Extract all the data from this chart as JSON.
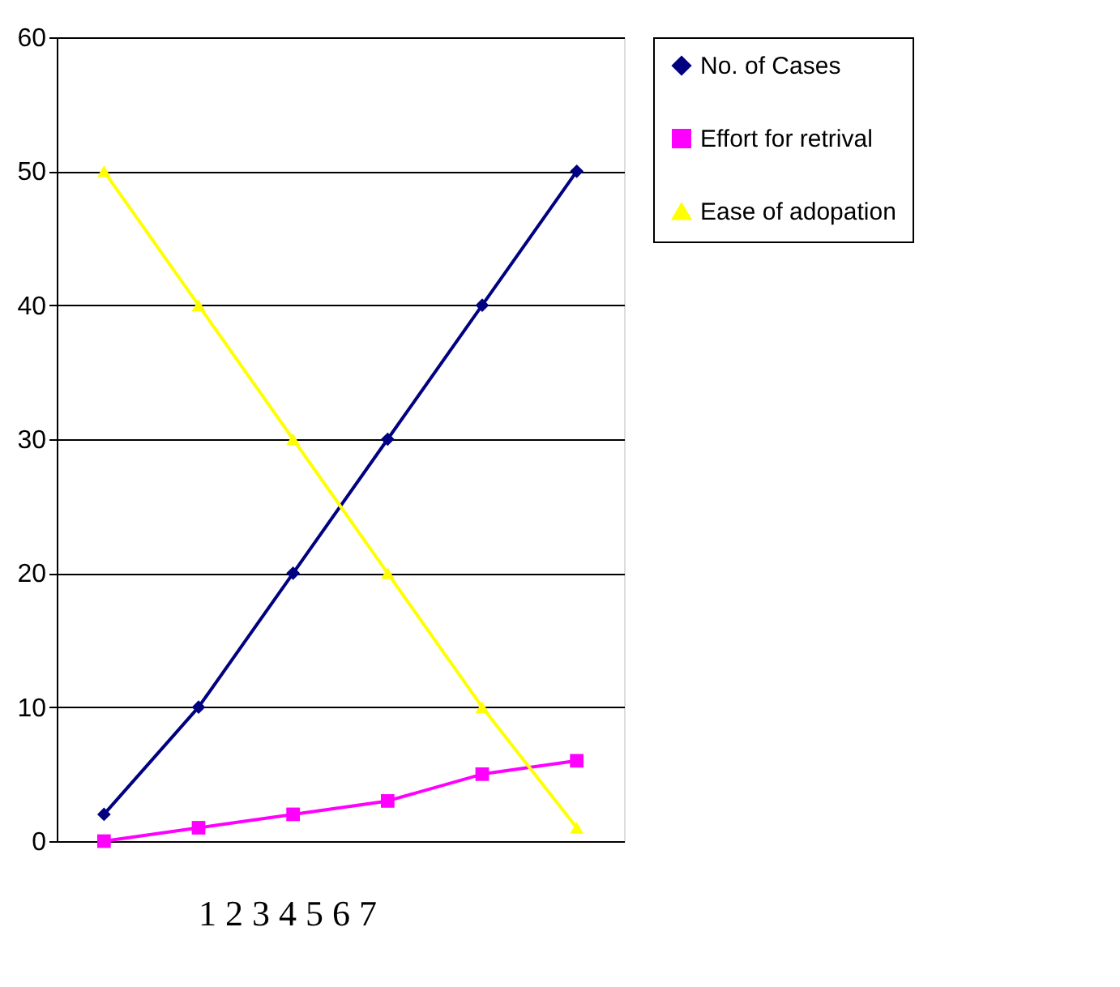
{
  "chart_data": {
    "type": "line",
    "categories": [
      null,
      null,
      null,
      null,
      null,
      null
    ],
    "series": [
      {
        "name": "No. of Cases",
        "color": "#000080",
        "marker": "diamond",
        "values": [
          2,
          10,
          20,
          30,
          40,
          50
        ]
      },
      {
        "name": "Effort for retrival",
        "color": "#ff00ff",
        "marker": "square",
        "values": [
          0,
          1,
          2,
          3,
          5,
          6
        ]
      },
      {
        "name": "Ease of adopation",
        "color": "#ffff00",
        "marker": "triangle",
        "values": [
          50,
          40,
          30,
          20,
          10,
          1
        ]
      }
    ],
    "ylim": [
      0,
      60
    ],
    "yticks": [
      0,
      10,
      20,
      30,
      40,
      50,
      60
    ],
    "grid": "y",
    "legend": "right",
    "tick_labels": "y",
    "annotations": [
      "1      2      3      4      5      6      7"
    ]
  }
}
